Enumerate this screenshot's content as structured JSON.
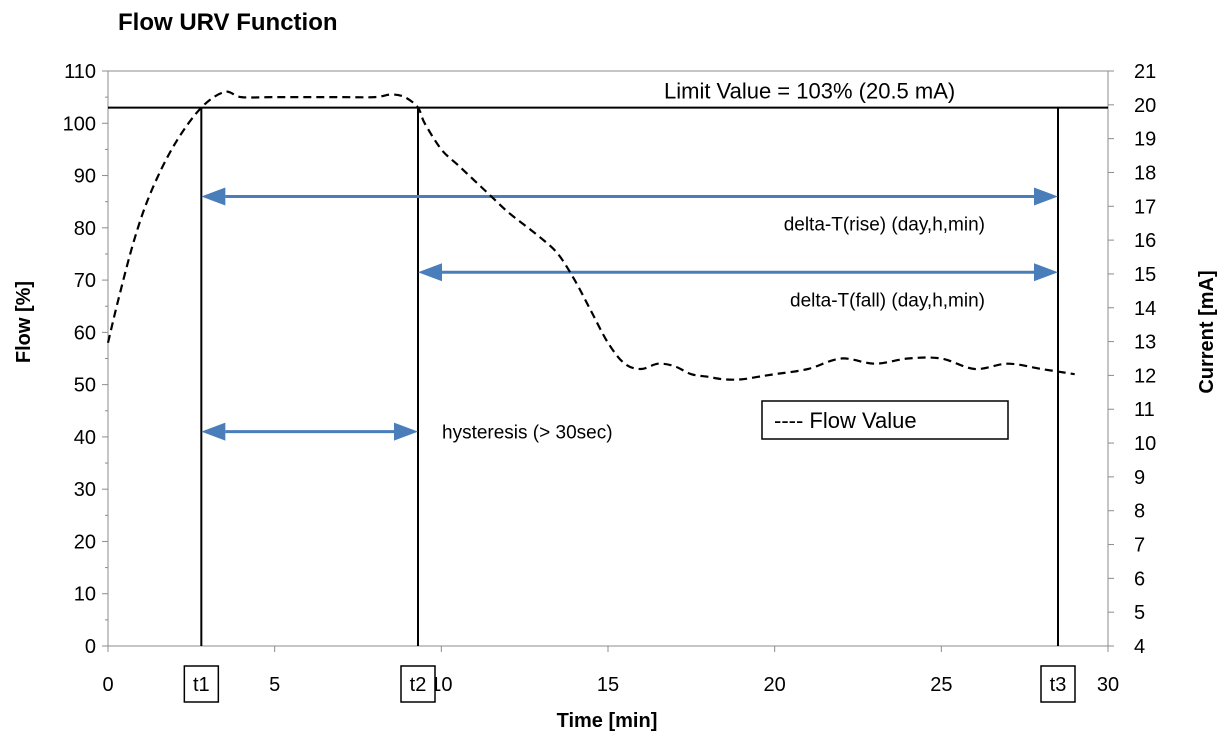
{
  "chart_data": {
    "type": "line",
    "title": "Flow URV Function",
    "xlabel": "Time [min]",
    "ylabel": "Flow [%]",
    "y2label": "Current [mA]",
    "xlim": [
      0,
      30
    ],
    "ylim": [
      0,
      110
    ],
    "y2lim": [
      4,
      21
    ],
    "x_ticks": [
      0,
      5,
      10,
      15,
      20,
      25,
      30
    ],
    "y_ticks": [
      0,
      10,
      20,
      30,
      40,
      50,
      60,
      70,
      80,
      90,
      100,
      110
    ],
    "y2_ticks": [
      4,
      5,
      6,
      7,
      8,
      9,
      10,
      11,
      12,
      13,
      14,
      15,
      16,
      17,
      18,
      19,
      20,
      21
    ],
    "grid": false,
    "series": [
      {
        "name": "Flow Value",
        "style": "dashed",
        "color": "#000000",
        "x": [
          0,
          0.3,
          0.8,
          1.3,
          2.0,
          2.8,
          3.5,
          4.0,
          5.0,
          6.0,
          7.0,
          8.0,
          8.5,
          8.9,
          9.3,
          9.5,
          10.0,
          10.5,
          11.0,
          11.5,
          12.0,
          12.5,
          13.0,
          13.5,
          14.0,
          14.5,
          15.0,
          15.5,
          16.0,
          16.5,
          17.0,
          17.5,
          18.0,
          18.5,
          19.0,
          19.5,
          20.0,
          21.0,
          22.0,
          23.0,
          24.0,
          25.0,
          26.0,
          27.0,
          28.0,
          29.0
        ],
        "y": [
          58,
          66,
          78,
          87,
          96,
          103,
          106,
          105,
          105,
          105,
          105,
          105,
          105.5,
          105,
          103,
          100,
          95,
          92,
          89,
          86,
          83,
          80.5,
          78,
          75,
          70,
          64,
          58,
          54,
          53,
          54,
          53.5,
          52,
          51.5,
          51,
          51,
          51.5,
          52,
          53,
          55,
          54,
          55,
          55,
          53,
          54,
          53,
          52
        ]
      }
    ],
    "limit_line": {
      "value": 103,
      "label": "Limit Value = 103% (20.5 mA)"
    },
    "markers": [
      {
        "label": "t1",
        "x": 2.8
      },
      {
        "label": "t2",
        "x": 9.3
      },
      {
        "label": "t3",
        "x": 28.5
      }
    ],
    "intervals": [
      {
        "label": "delta-T(rise) (day,h,min)",
        "from": 2.8,
        "to": 28.5,
        "y": 86
      },
      {
        "label": "delta-T(fall) (day,h,min)",
        "from": 9.3,
        "to": 28.5,
        "y": 71.5
      },
      {
        "label": "hysteresis (> 30sec)",
        "from": 2.8,
        "to": 9.3,
        "y": 41
      }
    ],
    "arrow_color": "#4a7ebb",
    "legend": {
      "label": "---- Flow Value",
      "position": "center-right"
    }
  }
}
